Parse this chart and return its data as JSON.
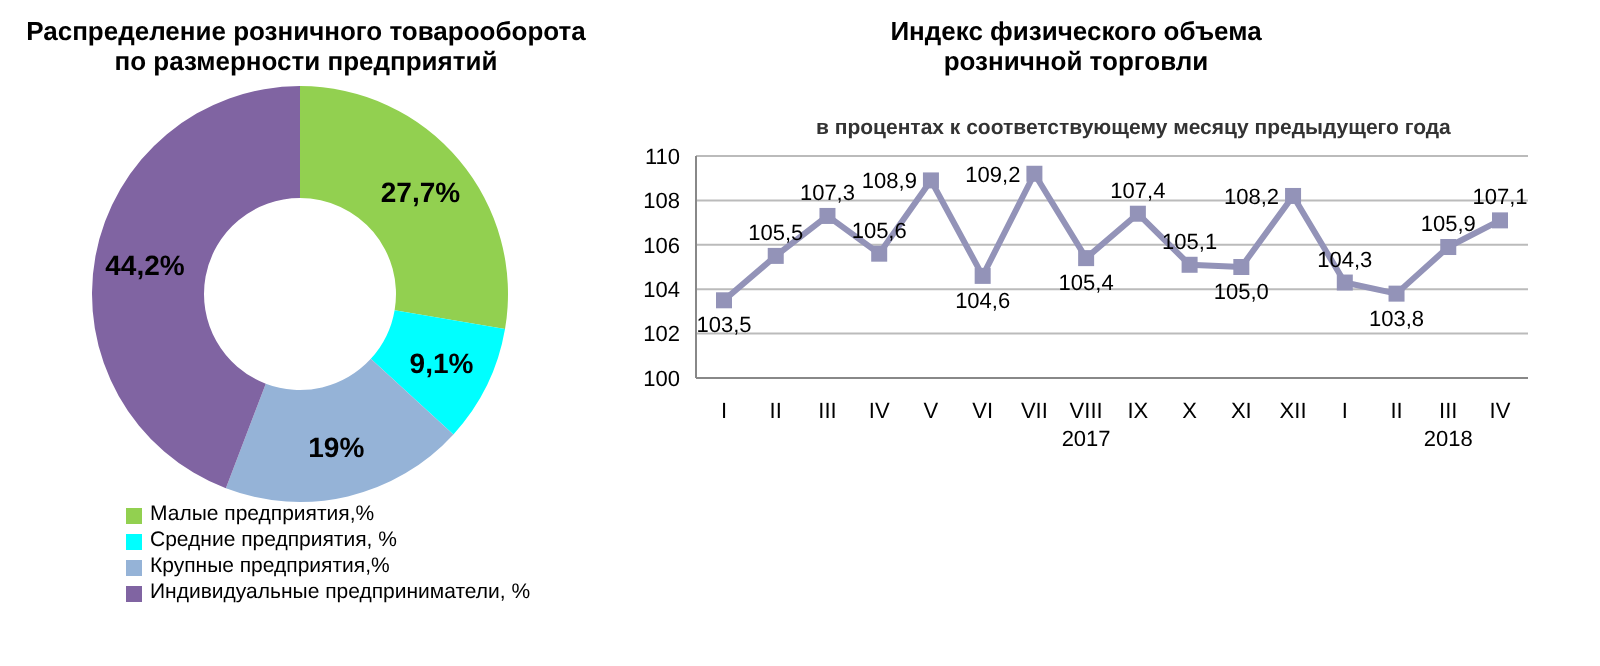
{
  "chart_data": [
    {
      "type": "donut",
      "title": "Распределение розничного товарооборота по размерности предприятий",
      "categories": [
        "Малые предприятия,%",
        "Средние предприятия, %",
        "Крупные предприятия,%",
        "Индивидуальные предприниматели, %"
      ],
      "values": [
        27.7,
        9.1,
        19,
        44.2
      ],
      "colors": [
        "#92d050",
        "#00ffff",
        "#95b3d7",
        "#8064a2"
      ],
      "value_labels": [
        "27,7%",
        "9,1%",
        "19%",
        "44,2%"
      ],
      "legend": "bottom"
    },
    {
      "type": "line",
      "title": "Индекс физического объема розничной торговли",
      "subtitle": "в процентах к соответствующему месяцу предыдущего года",
      "categories": [
        "I",
        "II",
        "III",
        "IV",
        "V",
        "VI",
        "VII",
        "VIII",
        "IX",
        "X",
        "XI",
        "XII",
        "I",
        "II",
        "III",
        "IV"
      ],
      "series": [
        {
          "color": "#9393b8",
          "values": [
            103.5,
            105.5,
            107.3,
            105.6,
            108.9,
            104.6,
            109.2,
            105.4,
            107.4,
            105.1,
            105.0,
            108.2,
            104.3,
            103.8,
            105.9,
            107.1
          ],
          "value_labels": [
            "103,5",
            "105,5",
            "107,3",
            "105,6",
            "108,9",
            "104,6",
            "109,2",
            "105,4",
            "107,4",
            "105,1",
            "105,0",
            "108,2",
            "104,3",
            "103,8",
            "105,9",
            "107,1"
          ]
        }
      ],
      "ylim": [
        100,
        110
      ],
      "yticks": [
        100,
        102,
        104,
        106,
        108,
        110
      ],
      "grid": "y",
      "marker": "square",
      "line_style": "solid",
      "annotations": [
        "2017",
        "2018"
      ]
    }
  ]
}
